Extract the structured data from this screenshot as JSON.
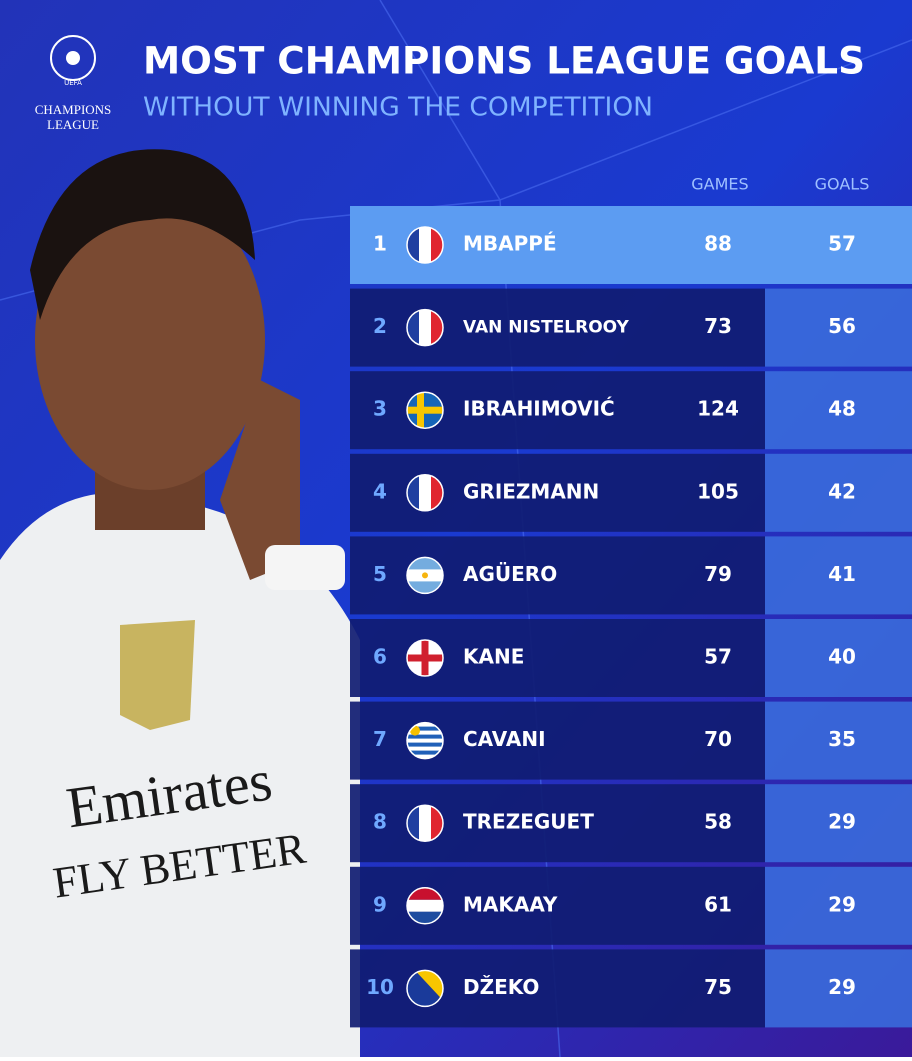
{
  "logo": {
    "top": "UEFA",
    "middle": "CHAMPIONS",
    "bottom": "LEAGUE"
  },
  "header": {
    "title": "MOST CHAMPIONS LEAGUE GOALS",
    "subtitle": "WITHOUT WINNING THE COMPETITION"
  },
  "photo": {
    "sponsor": "Emirates",
    "tagline": "FLY BETTER"
  },
  "table": {
    "columns": [
      "GAMES",
      "GOALS"
    ],
    "rows": [
      [
        1,
        "MBAPPÉ",
        88,
        57
      ],
      [
        2,
        "VAN NISTELROOY",
        73,
        56
      ],
      [
        3,
        "IBRAHIMOVIĆ",
        124,
        48
      ],
      [
        4,
        "GRIEZMANN",
        105,
        42
      ],
      [
        5,
        "AGÜERO",
        79,
        41
      ],
      [
        6,
        "KANE",
        57,
        40
      ],
      [
        7,
        "CAVANI",
        70,
        35
      ],
      [
        8,
        "TREZEGUET",
        58,
        29
      ],
      [
        9,
        "MAKAAY",
        61,
        29
      ],
      [
        10,
        "DŽEKO",
        75,
        29
      ]
    ]
  }
}
